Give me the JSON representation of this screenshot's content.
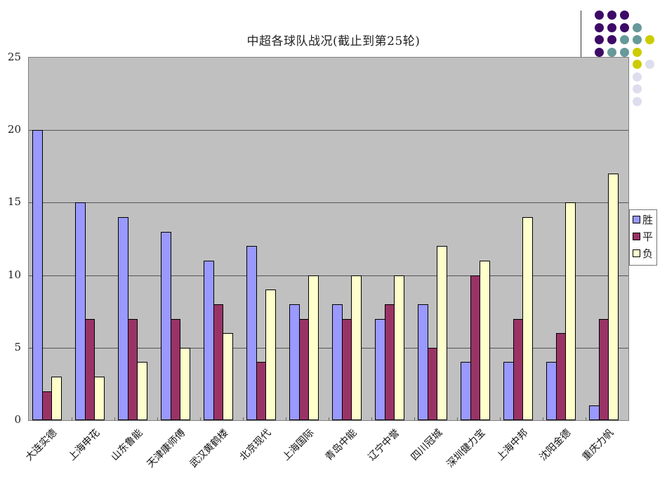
{
  "chart_data": {
    "type": "bar",
    "title": "中超各球队战况(截止到第25轮)",
    "xlabel": "",
    "ylabel": "",
    "ylim": [
      0,
      25
    ],
    "yticks": [
      0,
      5,
      10,
      15,
      20,
      25
    ],
    "grid": true,
    "legend_position": "right",
    "categories": [
      "大连实德",
      "上海申花",
      "山东鲁能",
      "天津康师傅",
      "武汉黄鹤楼",
      "北京现代",
      "上海国际",
      "青岛中能",
      "辽宁中誉",
      "四川冠城",
      "深圳健力宝",
      "上海中邦",
      "沈阳金德",
      "重庆力帆"
    ],
    "series": [
      {
        "name": "胜",
        "color": "#9999ff",
        "values": [
          20,
          15,
          14,
          13,
          11,
          12,
          8,
          8,
          7,
          8,
          4,
          4,
          4,
          1
        ]
      },
      {
        "name": "平",
        "color": "#993366",
        "values": [
          2,
          7,
          7,
          7,
          8,
          4,
          7,
          7,
          8,
          5,
          10,
          7,
          6,
          7
        ]
      },
      {
        "name": "负",
        "color": "#ffffcc",
        "values": [
          3,
          3,
          4,
          5,
          6,
          9,
          10,
          10,
          10,
          12,
          11,
          14,
          15,
          17
        ]
      }
    ]
  },
  "decoration": {
    "dots": [
      {
        "row": 0,
        "colors": [
          "#3d0a66",
          "#3d0a66",
          "#3d0a66"
        ]
      },
      {
        "row": 1,
        "colors": [
          "#3d0a66",
          "#3d0a66",
          "#3d0a66",
          "#669999"
        ]
      },
      {
        "row": 2,
        "colors": [
          "#3d0a66",
          "#3d0a66",
          "#669999",
          "#669999",
          "#cccc00"
        ]
      },
      {
        "row": 3,
        "colors": [
          "#3d0a66",
          "#669999",
          "#669999",
          "#cccc00"
        ]
      },
      {
        "row": 4,
        "colors": [
          "",
          "",
          "",
          "#cccc00",
          "#ddddee"
        ]
      },
      {
        "row": 5,
        "colors": [
          "",
          "",
          "",
          "#ddddee"
        ]
      },
      {
        "row": 6,
        "colors": [
          "",
          "",
          "",
          "#ddddee"
        ]
      },
      {
        "row": 7,
        "colors": [
          "",
          "",
          "",
          "#ddddee"
        ]
      }
    ]
  },
  "plot": {
    "background": "#c0c0c0"
  }
}
